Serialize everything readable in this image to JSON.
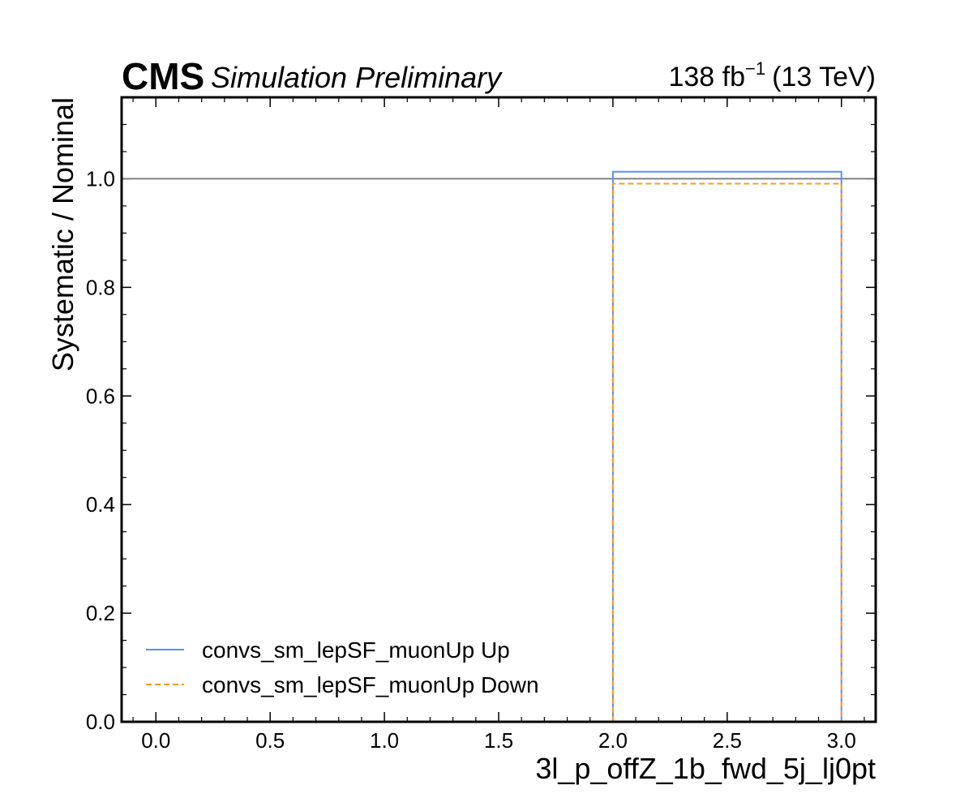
{
  "header": {
    "experiment": "CMS",
    "status": "Simulation Preliminary",
    "lumi_value": "138 fb",
    "lumi_exponent": "−1",
    "energy": "(13 TeV)"
  },
  "chart_data": {
    "type": "step",
    "xlabel": "3l_p_offZ_1b_fwd_5j_lj0pt",
    "ylabel": "Systematic / Nominal",
    "xlim": [
      -0.15,
      3.15
    ],
    "ylim": [
      0.0,
      1.15
    ],
    "x_ticks": [
      0.0,
      0.5,
      1.0,
      1.5,
      2.0,
      2.5,
      3.0
    ],
    "x_tick_labels": [
      "0.0",
      "0.5",
      "1.0",
      "1.5",
      "2.0",
      "2.5",
      "3.0"
    ],
    "y_ticks": [
      0.0,
      0.2,
      0.4,
      0.6,
      0.8,
      1.0
    ],
    "y_tick_labels": [
      "0.0",
      "0.2",
      "0.4",
      "0.6",
      "0.8",
      "1.0"
    ],
    "reference_line": {
      "y": 1.0,
      "color": "#808080"
    },
    "bin_edges": [
      2.0,
      3.0
    ],
    "series": [
      {
        "name": "convs_sm_lepSF_muonUp Up",
        "values": [
          1.013
        ],
        "color": "#5790fc",
        "dash": "solid"
      },
      {
        "name": "convs_sm_lepSF_muonUp Down",
        "values": [
          0.991
        ],
        "color": "#f89c20",
        "dash": "dashed"
      }
    ],
    "legend_position": "lower-left",
    "grid": false
  }
}
